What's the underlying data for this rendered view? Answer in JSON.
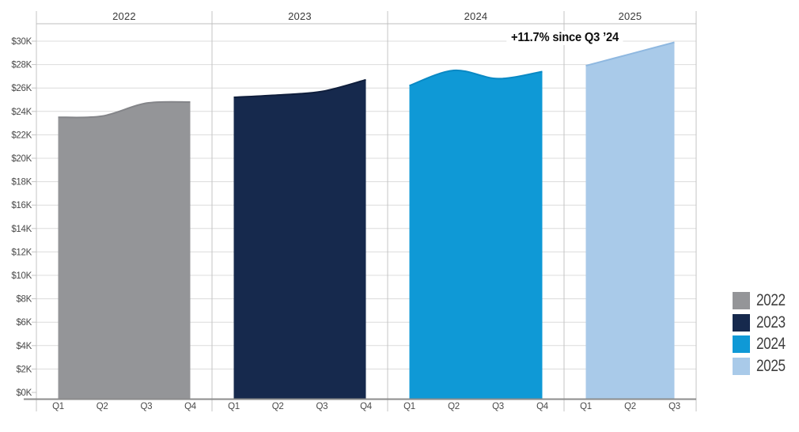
{
  "chart_data": {
    "type": "area",
    "annotation": "+11.7% since Q3 ’24",
    "ylim": [
      0,
      30000
    ],
    "y_tick_step": 2000,
    "y_tick_labels": [
      "$0K",
      "$2K",
      "$4K",
      "$6K",
      "$8K",
      "$10K",
      "$12K",
      "$14K",
      "$16K",
      "$18K",
      "$20K",
      "$22K",
      "$24K",
      "$26K",
      "$28K",
      "$30K"
    ],
    "grid": true,
    "legend_position": "right",
    "categories": [
      "Q1",
      "Q2",
      "Q3",
      "Q4"
    ],
    "series": [
      {
        "name": "2022",
        "fill": "#949598",
        "stroke": "#848589",
        "quarters": [
          "Q1",
          "Q2",
          "Q3",
          "Q4"
        ],
        "values": [
          23500,
          23600,
          24700,
          24800
        ]
      },
      {
        "name": "2023",
        "fill": "#16294d",
        "stroke": "#0f1e3c",
        "quarters": [
          "Q1",
          "Q2",
          "Q3",
          "Q4"
        ],
        "values": [
          25200,
          25400,
          25700,
          26700
        ]
      },
      {
        "name": "2024",
        "fill": "#0f99d6",
        "stroke": "#0a89c4",
        "quarters": [
          "Q1",
          "Q2",
          "Q3",
          "Q4"
        ],
        "values": [
          26200,
          27500,
          26800,
          27400
        ]
      },
      {
        "name": "2025",
        "fill": "#a9cae9",
        "stroke": "#8fb8e0",
        "quarters": [
          "Q1",
          "Q2",
          "Q3"
        ],
        "values": [
          27900,
          28900,
          29900
        ]
      }
    ],
    "legend": {
      "items": [
        "2022",
        "2023",
        "2024",
        "2025"
      ]
    }
  },
  "colors": {
    "gridline": "#dcdcdc",
    "panel_divider": "#c4c4c4",
    "header_line": "#bfbfbf",
    "axis_line": "#8c8c8c",
    "tick": "#c4c4c4",
    "background": "#ffffff"
  }
}
